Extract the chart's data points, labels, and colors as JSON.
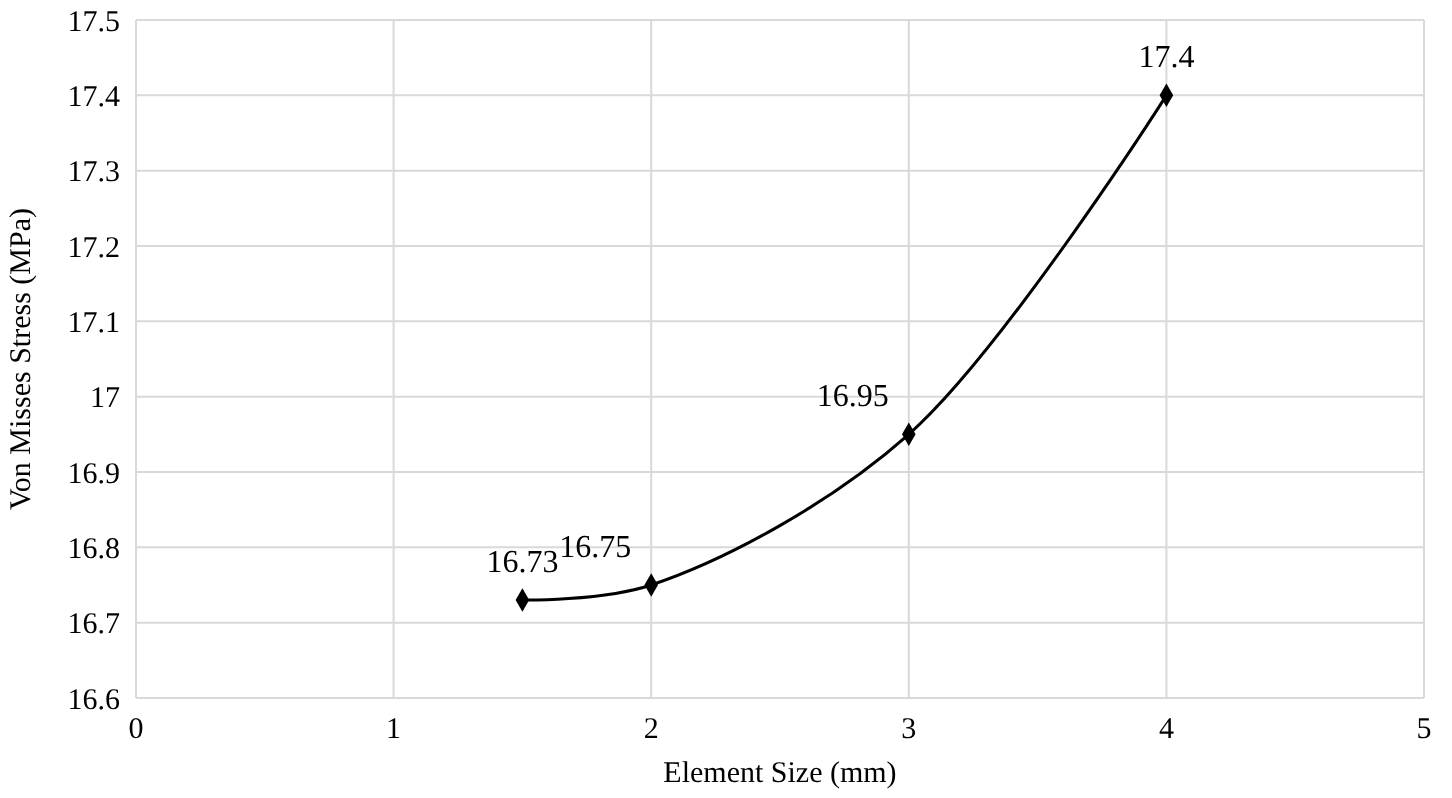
{
  "chart_data": {
    "type": "line",
    "xlabel": "Element Size (mm)",
    "ylabel": "Von Misses Stress (MPa)",
    "x": [
      1.5,
      2,
      3,
      4
    ],
    "series": [
      {
        "color": "#000000",
        "values": [
          16.73,
          16.75,
          16.95,
          17.4
        ]
      }
    ],
    "xlim": [
      0,
      5
    ],
    "xticks": [
      0,
      1,
      2,
      3,
      4,
      5
    ],
    "ylim": [
      16.6,
      17.5
    ],
    "yticks": [
      16.6,
      16.7,
      16.8,
      16.9,
      17,
      17.1,
      17.2,
      17.3,
      17.4,
      17.5
    ],
    "grid": true,
    "marker": "diamond",
    "line_style": "solid",
    "data_labels": true
  }
}
